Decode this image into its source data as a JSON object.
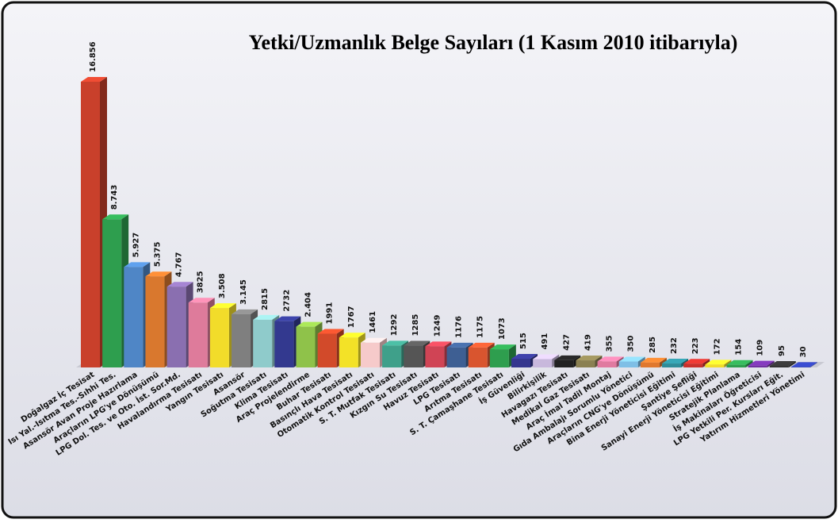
{
  "chart_data": {
    "type": "bar3d",
    "title": "Yetki/Uzmanlık Belge Sayıları (1 Kasım 2010 itibarıyla)",
    "categories": [
      "Doğalgaz İç Tesisat",
      "Isı Yal.-Isıtma Tes.-Sıhhi Tes.",
      "Asansör Avan Proje Hazırlama",
      "Araçların LPG'ye Dönüşümü",
      "LPG Dol. Tes. ve Oto. İst. Sor.Md.",
      "Havalandırma Tesisatı",
      "Yangın Tesisatı",
      "Asansör",
      "Soğutma Tesisatı",
      "Klima Tesisatı",
      "Araç Projelendirme",
      "Buhar Tesisatı",
      "Basınçlı Hava Tesisatı",
      "Otomatik Kontrol Tesisatı",
      "S. T. Mutfak Tesisatı",
      "Kızgın Su Tesisatı",
      "Havuz Tesisatı",
      "LPG Tesisatı",
      "Arıtma Tesisatı",
      "S. T. Çamaşhane Tesisatı",
      "İş Güvenliği",
      "Bilirkişilik",
      "Havagazı Tesisatı",
      "Medikal Gaz Tesisatı",
      "Araç İmal Tadil Montaj",
      "Gıda Ambalajı Sorumlu Yönetici",
      "Araçların CNG'ye Dönüşümü",
      "Bina Enerji Yöneticisi Eğitimi",
      "Şantiye Şefliği",
      "Sanayi Enerji Yöneticisi Eğitimi",
      "Stratejik Planlama",
      "İş Makinaları Öğreticisi",
      "LPG Yetkili Per. Kursları Eğit.",
      "Yatırım Hizmetleri Yönetimi"
    ],
    "values": [
      16856,
      8743,
      5927,
      5375,
      4767,
      3825,
      3508,
      3145,
      2815,
      2732,
      2404,
      1991,
      1767,
      1461,
      1292,
      1285,
      1249,
      1176,
      1175,
      1073,
      515,
      491,
      427,
      419,
      355,
      350,
      285,
      232,
      223,
      172,
      154,
      109,
      95,
      30
    ],
    "value_labels": [
      "16.856",
      "8.743",
      "5.927",
      "5.375",
      "4.767",
      "3825",
      "3.508",
      "3.145",
      "2815",
      "2732",
      "2.404",
      "1991",
      "1767",
      "1461",
      "1292",
      "1285",
      "1249",
      "1176",
      "1175",
      "1073",
      "515",
      "491",
      "427",
      "419",
      "355",
      "350",
      "285",
      "232",
      "223",
      "172",
      "154",
      "109",
      "95",
      "30"
    ],
    "colors": [
      "#c9402b",
      "#2e9e4e",
      "#4f86c6",
      "#d9782e",
      "#8a6fb0",
      "#de7b9b",
      "#f2dc2a",
      "#7f7f7f",
      "#8fcbcb",
      "#33398f",
      "#8fc24a",
      "#d24a2a",
      "#f3e227",
      "#f6caca",
      "#3fa08a",
      "#555555",
      "#d04455",
      "#3e5f93",
      "#d9552f",
      "#2e9e4e",
      "#35378f",
      "#c8b8dc",
      "#222222",
      "#8a8052",
      "#e07aa0",
      "#7fbfe6",
      "#e0782e",
      "#2e8c99",
      "#c9302b",
      "#f2dc2a",
      "#2e9e4e",
      "#7030a0",
      "#333333",
      "#3040b0"
    ]
  }
}
